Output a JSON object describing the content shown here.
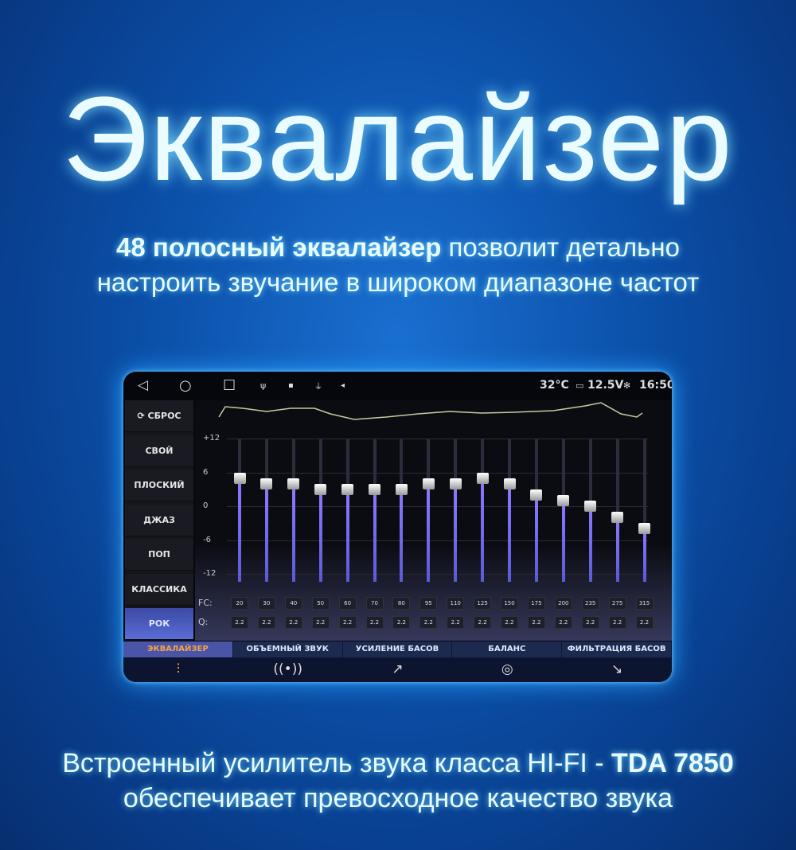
{
  "headline": "Эквалайзер",
  "intro": {
    "bold": "48 полосный эквалайзер",
    "rest": " позволит детально",
    "line2": "настроить звучание в широком диапазоне частот"
  },
  "status": {
    "back_icon": "◁",
    "home_icon": "○",
    "recent_icon": "☐",
    "usb_icon": "ψ",
    "sd_icon": "▪",
    "antenna_icon": "⏚",
    "nav_icon": "◂",
    "temp": "32°C",
    "voltage": "12.5V",
    "bt_icon": "✻",
    "time": "16:50"
  },
  "presets": [
    {
      "label": "⟳ СБРОС"
    },
    {
      "label": "СВОЙ"
    },
    {
      "label": "ПЛОСКИЙ"
    },
    {
      "label": "ДЖАЗ"
    },
    {
      "label": "ПОП"
    },
    {
      "label": "КЛАССИКА"
    },
    {
      "label": "РОК",
      "selected": true
    }
  ],
  "scale": [
    "+12",
    "6",
    "0",
    "-6",
    "-12"
  ],
  "fc_label": "FC:",
  "q_label": "Q:",
  "bands": {
    "fc": [
      "20",
      "30",
      "40",
      "50",
      "60",
      "70",
      "80",
      "95",
      "110",
      "125",
      "150",
      "175",
      "200",
      "235",
      "275",
      "315"
    ],
    "q": [
      "2.2",
      "2.2",
      "2.2",
      "2.2",
      "2.2",
      "2.2",
      "2.2",
      "2.2",
      "2.2",
      "2.2",
      "2.2",
      "2.2",
      "2.2",
      "2.2",
      "2.2",
      "2.2"
    ],
    "gain_db": [
      5,
      4,
      4,
      3,
      3,
      3,
      3,
      4,
      4,
      5,
      4,
      2,
      1,
      0,
      -2,
      -4
    ],
    "range_db": [
      -12,
      12
    ]
  },
  "tabs": [
    {
      "label": "ЭКВАЛАЙЗЕР",
      "icon": "⫶",
      "selected": true
    },
    {
      "label": "ОБЪЕМНЫЙ ЗВУК",
      "icon": "((•))"
    },
    {
      "label": "УСИЛЕНИЕ БАСОВ",
      "icon": "↗"
    },
    {
      "label": "БАЛАНС",
      "icon": "◎"
    },
    {
      "label": "ФИЛЬТРАЦИЯ БАСОВ",
      "icon": "↘"
    }
  ],
  "colors": {
    "accent": "#f6a24a",
    "slider": "#7b6cf0",
    "glow": "#2aa3ff"
  },
  "footer": {
    "line1": "Встроенный усилитель звука класса HI-FI - ",
    "line1_bold": "TDA 7850",
    "line2": "обеспечивает превосходное качество звука"
  }
}
